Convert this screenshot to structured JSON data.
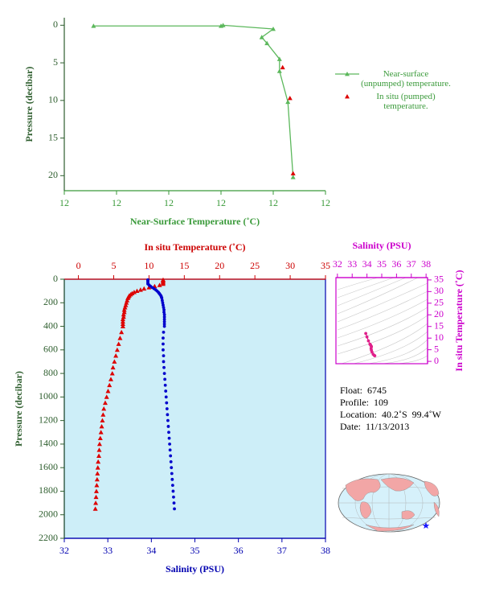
{
  "chart_data": [
    {
      "type": "profile",
      "xlabel": "Near-Surface Temperature (˚C)",
      "ylabel": "Pressure (decibar)",
      "xlim": [
        11.75,
        12.0
      ],
      "xticks": [
        {
          "value": 11.75,
          "label": "12"
        },
        {
          "value": 11.8,
          "label": "12"
        },
        {
          "value": 11.85,
          "label": "12"
        },
        {
          "value": 11.9,
          "label": "12"
        },
        {
          "value": 11.95,
          "label": "12"
        },
        {
          "value": 12.0,
          "label": "12"
        }
      ],
      "ylim": [
        -1,
        22
      ],
      "yticks": [
        0,
        5,
        10,
        15,
        20
      ],
      "y_inverted": true,
      "frame": false,
      "background": "#ffffff",
      "axis_colors": {
        "x": "#3a9a3a",
        "y": "#2e5e2e"
      },
      "series": [
        {
          "name": "Near-surface (unpumped) temperature.",
          "color": "#5cb85c",
          "marker": "triangle",
          "line": true,
          "x": [
            11.778,
            11.9,
            11.902,
            11.95,
            11.939,
            11.944,
            11.956,
            11.956,
            11.964,
            11.969
          ],
          "y": [
            0.1,
            0.1,
            0.0,
            0.5,
            1.6,
            2.4,
            4.5,
            6.1,
            10.2,
            20.2
          ]
        },
        {
          "name": "In situ (pumped) temperature.",
          "color": "#dd0000",
          "marker": "triangle",
          "line": false,
          "x": [
            11.959,
            11.966,
            11.969
          ],
          "y": [
            5.6,
            9.7,
            19.7
          ]
        }
      ]
    },
    {
      "type": "profile",
      "xlabel": "Salinity (PSU)",
      "x2label": "In situ Temperature (˚C)",
      "ylabel": "Pressure (decibar)",
      "xlim": [
        32,
        38
      ],
      "xticks": [
        32,
        33,
        34,
        35,
        36,
        37,
        38
      ],
      "x2lim": [
        -2,
        35
      ],
      "x2ticks": [
        0,
        5,
        10,
        15,
        20,
        25,
        30,
        35
      ],
      "ylim": [
        0,
        2200
      ],
      "yticks": [
        0,
        200,
        400,
        600,
        800,
        1000,
        1200,
        1400,
        1600,
        1800,
        2000,
        2200
      ],
      "y_inverted": true,
      "frame": true,
      "background": "#cdeef8",
      "axis_colors": {
        "x": "#0000b0",
        "x2": "#cc0000",
        "y": "#2e5e2e"
      },
      "series": [
        {
          "color": "#dd0000",
          "marker": "triangle",
          "line": false,
          "axis": "x2",
          "x": [
            12.0,
            12.0,
            12.0,
            12.0,
            12.0,
            11.5,
            10.8,
            10.0,
            9.3,
            8.8,
            8.3,
            7.9,
            7.6,
            7.4,
            7.2,
            7.1,
            7.0,
            6.9,
            6.8,
            6.7,
            6.6,
            6.5,
            6.5,
            6.4,
            6.4,
            6.3,
            6.3,
            6.3,
            6.3,
            6.1,
            5.9,
            5.7,
            5.5,
            5.3,
            5.1,
            4.9,
            4.8,
            4.6,
            4.4,
            4.2,
            4.0,
            3.8,
            3.6,
            3.5,
            3.4,
            3.3,
            3.2,
            3.1,
            3.0,
            2.95,
            2.9,
            2.8,
            2.75,
            2.7,
            2.65,
            2.6,
            2.55,
            2.5,
            2.45,
            2.4
          ],
          "y": [
            5,
            10,
            20,
            30,
            40,
            50,
            60,
            70,
            80,
            90,
            100,
            110,
            120,
            130,
            140,
            150,
            160,
            180,
            200,
            220,
            240,
            260,
            280,
            300,
            320,
            340,
            360,
            380,
            400,
            450,
            500,
            550,
            600,
            650,
            700,
            750,
            800,
            850,
            900,
            950,
            1000,
            1050,
            1100,
            1150,
            1200,
            1250,
            1300,
            1350,
            1400,
            1450,
            1500,
            1550,
            1600,
            1650,
            1700,
            1750,
            1800,
            1850,
            1900,
            1950
          ]
        },
        {
          "color": "#0000cc",
          "marker": "circle",
          "line": false,
          "x": [
            33.92,
            33.92,
            33.92,
            33.92,
            33.92,
            33.95,
            33.98,
            34.02,
            34.06,
            34.1,
            34.13,
            34.16,
            34.18,
            34.2,
            34.22,
            34.23,
            34.24,
            34.25,
            34.26,
            34.27,
            34.28,
            34.29,
            34.29,
            34.3,
            34.3,
            34.3,
            34.3,
            34.3,
            34.3,
            34.28,
            34.27,
            34.27,
            34.27,
            34.28,
            34.28,
            34.29,
            34.3,
            34.31,
            34.32,
            34.33,
            34.34,
            34.35,
            34.36,
            34.37,
            34.38,
            34.39,
            34.4,
            34.41,
            34.42,
            34.43,
            34.44,
            34.45,
            34.46,
            34.47,
            34.48,
            34.49,
            34.5,
            34.51,
            34.52,
            34.53
          ],
          "y": [
            5,
            10,
            20,
            30,
            40,
            50,
            60,
            70,
            80,
            90,
            100,
            110,
            120,
            130,
            140,
            150,
            160,
            180,
            200,
            220,
            240,
            260,
            280,
            300,
            320,
            340,
            360,
            380,
            400,
            450,
            500,
            550,
            600,
            650,
            700,
            750,
            800,
            850,
            900,
            950,
            1000,
            1050,
            1100,
            1150,
            1200,
            1250,
            1300,
            1350,
            1400,
            1450,
            1500,
            1550,
            1600,
            1650,
            1700,
            1750,
            1800,
            1850,
            1900,
            1950
          ]
        }
      ]
    },
    {
      "type": "ts",
      "xlabel": "Salinity (PSU)",
      "ylabel": "In situ Temperature (˚C)",
      "xlim": [
        31.9,
        38.1
      ],
      "xticks": [
        32,
        33,
        34,
        35,
        36,
        37,
        38
      ],
      "x_axis_position": "top",
      "ylim": [
        -1,
        36
      ],
      "yticks": [
        0,
        5,
        10,
        15,
        20,
        25,
        30,
        35
      ],
      "y_axis_position": "right",
      "y_inverted": false,
      "frame": true,
      "background": "#ffffff",
      "axis_colors": {
        "x": "#cc00cc",
        "y": "#cc00cc"
      },
      "series": [
        {
          "color": "#e0208a",
          "marker": "circle",
          "line": true,
          "x": [
            33.92,
            34.0,
            34.1,
            34.2,
            34.25,
            34.3,
            34.3,
            34.28,
            34.3,
            34.34,
            34.42,
            34.5,
            34.53
          ],
          "y": [
            12.0,
            10.5,
            8.8,
            7.4,
            7.0,
            6.4,
            6.3,
            5.5,
            4.8,
            4.0,
            3.0,
            2.55,
            2.4
          ]
        }
      ]
    }
  ],
  "float_info": [
    "Float:  6745",
    "Profile:  109",
    "Location:  40.2˚S  99.4˚W",
    "Date:  11/13/2013"
  ]
}
